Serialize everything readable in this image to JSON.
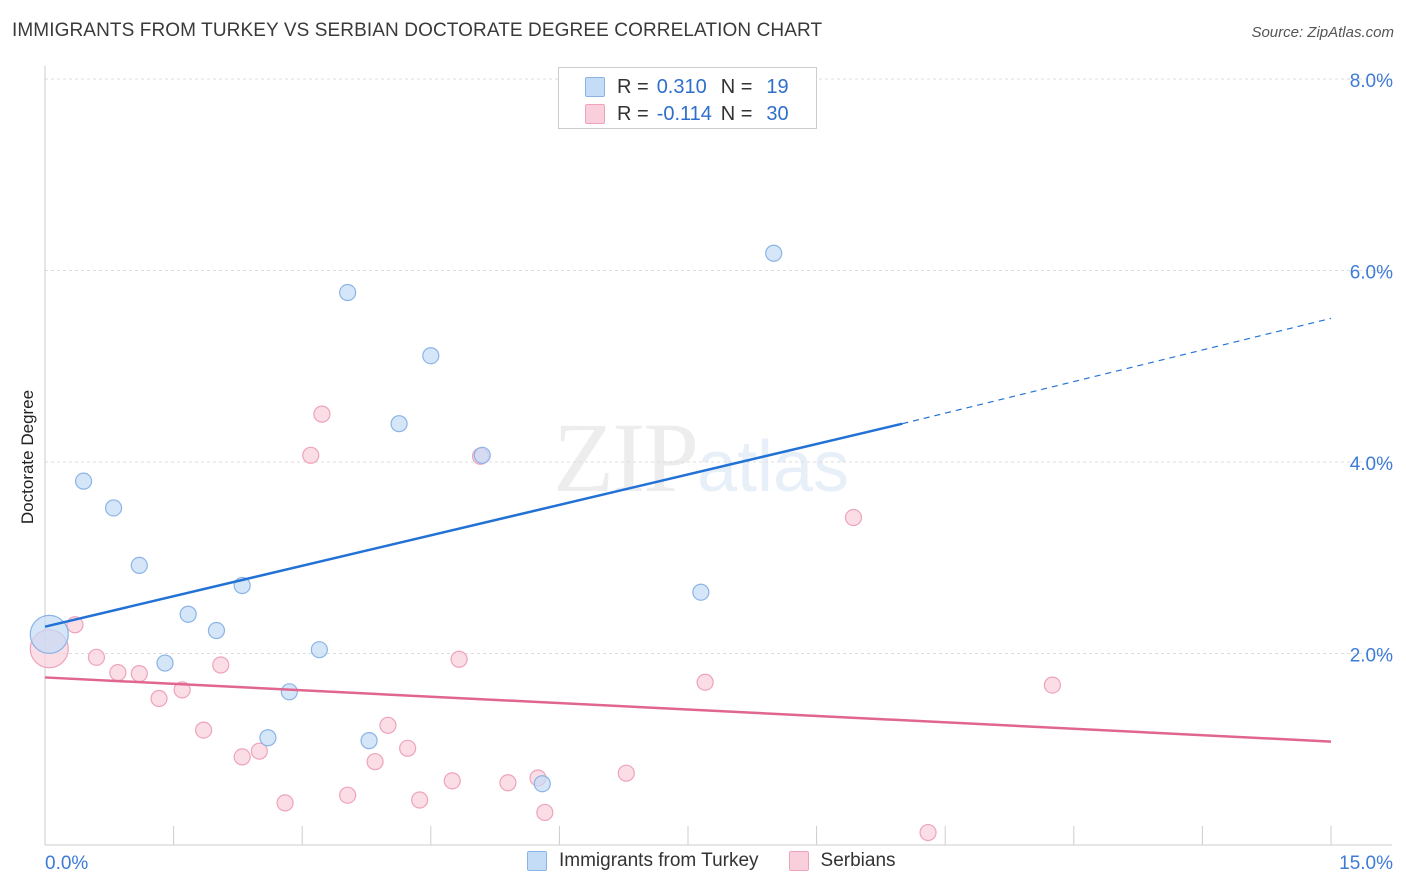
{
  "header": {
    "title": "IMMIGRANTS FROM TURKEY VS SERBIAN DOCTORATE DEGREE CORRELATION CHART",
    "source": "Source: ZipAtlas.com"
  },
  "legend_top": {
    "rows": [
      {
        "r_label": "R =",
        "r_value": "0.310",
        "n_label": "N =",
        "n_value": "19"
      },
      {
        "r_label": "R =",
        "r_value": "-0.114",
        "n_label": "N =",
        "n_value": "30"
      }
    ]
  },
  "watermark": {
    "zip": "ZIP",
    "atlas": "atlas"
  },
  "colors": {
    "turkey_fill": "#c5dcf7",
    "turkey_stroke": "#8ab4e6",
    "turkey_line": "#2272d6",
    "serbian_fill": "#f9cfdc",
    "serbian_stroke": "#eea3bc",
    "serbian_line": "#e0668f",
    "axis_label": "#3d7bd6",
    "grid": "#dddddd"
  },
  "chart_data": {
    "type": "scatter",
    "title": "IMMIGRANTS FROM TURKEY VS SERBIAN DOCTORATE DEGREE CORRELATION CHART",
    "xlabel": "",
    "ylabel": "Doctorate Degree",
    "xlim": [
      0,
      15
    ],
    "ylim": [
      0,
      8
    ],
    "x_tick_labels": [
      "0.0%",
      "15.0%"
    ],
    "y_ticks": [
      2,
      4,
      6,
      8
    ],
    "y_tick_labels": [
      "2.0%",
      "4.0%",
      "6.0%",
      "8.0%"
    ],
    "series": [
      {
        "name": "Immigrants from Turkey",
        "r": 0.31,
        "n": 19,
        "points": [
          {
            "x": 0.05,
            "y": 2.2,
            "size": "large"
          },
          {
            "x": 0.45,
            "y": 3.8
          },
          {
            "x": 0.8,
            "y": 3.52
          },
          {
            "x": 1.1,
            "y": 2.92
          },
          {
            "x": 1.4,
            "y": 1.9
          },
          {
            "x": 1.67,
            "y": 2.41
          },
          {
            "x": 2.0,
            "y": 2.24
          },
          {
            "x": 2.3,
            "y": 2.71
          },
          {
            "x": 2.6,
            "y": 1.12
          },
          {
            "x": 2.85,
            "y": 1.6
          },
          {
            "x": 3.2,
            "y": 2.04
          },
          {
            "x": 3.53,
            "y": 5.77
          },
          {
            "x": 3.78,
            "y": 1.09
          },
          {
            "x": 4.13,
            "y": 4.4
          },
          {
            "x": 4.5,
            "y": 5.11
          },
          {
            "x": 5.1,
            "y": 4.07
          },
          {
            "x": 5.8,
            "y": 0.64
          },
          {
            "x": 7.65,
            "y": 2.64
          },
          {
            "x": 8.5,
            "y": 6.18
          }
        ],
        "trend": {
          "x_start": 0,
          "y_start": 2.28,
          "x_end": 10.0,
          "y_end": 4.4,
          "x_dash_end": 15.0,
          "y_dash_end": 5.5
        }
      },
      {
        "name": "Serbians",
        "r": -0.114,
        "n": 30,
        "points": [
          {
            "x": 0.05,
            "y": 2.05,
            "size": "large"
          },
          {
            "x": 0.35,
            "y": 2.3
          },
          {
            "x": 0.6,
            "y": 1.96
          },
          {
            "x": 0.85,
            "y": 1.8
          },
          {
            "x": 1.1,
            "y": 1.79
          },
          {
            "x": 1.33,
            "y": 1.53
          },
          {
            "x": 1.6,
            "y": 1.62
          },
          {
            "x": 1.85,
            "y": 1.2
          },
          {
            "x": 2.05,
            "y": 1.88
          },
          {
            "x": 2.3,
            "y": 0.92
          },
          {
            "x": 2.5,
            "y": 0.98
          },
          {
            "x": 2.8,
            "y": 0.44
          },
          {
            "x": 3.1,
            "y": 4.07
          },
          {
            "x": 3.23,
            "y": 4.5
          },
          {
            "x": 3.53,
            "y": 0.52
          },
          {
            "x": 3.85,
            "y": 0.87
          },
          {
            "x": 4.0,
            "y": 1.25
          },
          {
            "x": 4.23,
            "y": 1.01
          },
          {
            "x": 4.37,
            "y": 0.47
          },
          {
            "x": 4.75,
            "y": 0.67
          },
          {
            "x": 4.83,
            "y": 1.94
          },
          {
            "x": 5.08,
            "y": 4.06
          },
          {
            "x": 5.4,
            "y": 0.65
          },
          {
            "x": 5.75,
            "y": 0.7
          },
          {
            "x": 5.83,
            "y": 0.34
          },
          {
            "x": 6.78,
            "y": 0.75
          },
          {
            "x": 7.7,
            "y": 1.7
          },
          {
            "x": 9.43,
            "y": 3.42
          },
          {
            "x": 10.3,
            "y": 0.13
          },
          {
            "x": 11.75,
            "y": 1.67
          }
        ],
        "trend": {
          "x_start": 0,
          "y_start": 1.75,
          "x_end": 15.0,
          "y_end": 1.08
        }
      }
    ]
  }
}
